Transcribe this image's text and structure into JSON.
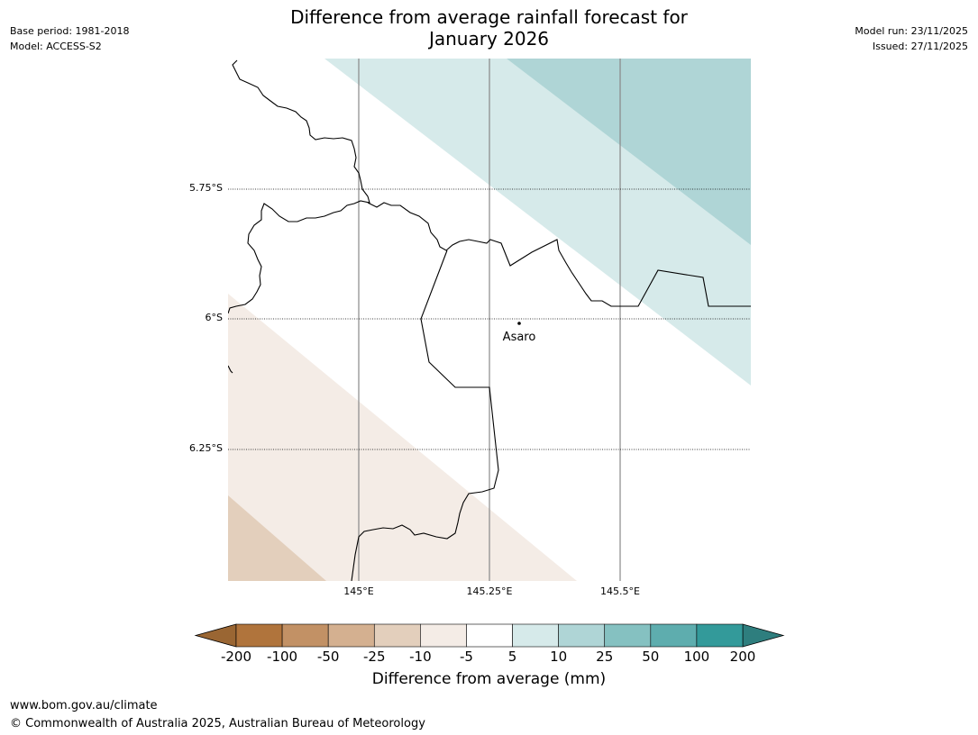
{
  "header": {
    "title_line1": "Difference from average rainfall forecast for",
    "title_line2": "January 2026",
    "base_period": "Base period: 1981-2018",
    "model": "Model: ACCESS-S2",
    "model_run": "Model run: 23/11/2025",
    "issued": "Issued: 27/11/2025"
  },
  "map": {
    "lat_labels": [
      "5.75°S",
      "6°S",
      "6.25°S"
    ],
    "lon_labels": [
      "145°E",
      "145.25°E",
      "145.5°E"
    ],
    "place": {
      "name": "Asaro"
    }
  },
  "colorbar": {
    "tick_labels": [
      "-200",
      "-100",
      "-50",
      "-25",
      "-10",
      "-5",
      "5",
      "10",
      "25",
      "50",
      "100",
      "200"
    ],
    "colors": [
      "#b0743c",
      "#c29165",
      "#d4b090",
      "#e3cfbc",
      "#f4ece6",
      "#ffffff",
      "#d6eaea",
      "#afd5d6",
      "#85c1c1",
      "#5eadae",
      "#339a9a"
    ],
    "low_extend_color": "#9a6633",
    "high_extend_color": "#2e7e7e",
    "title": "Difference from average (mm)"
  },
  "footer": {
    "url": "www.bom.gov.au/climate",
    "copyright": "© Commonwealth of Australia 2025, Australian Bureau of Meteorology"
  }
}
